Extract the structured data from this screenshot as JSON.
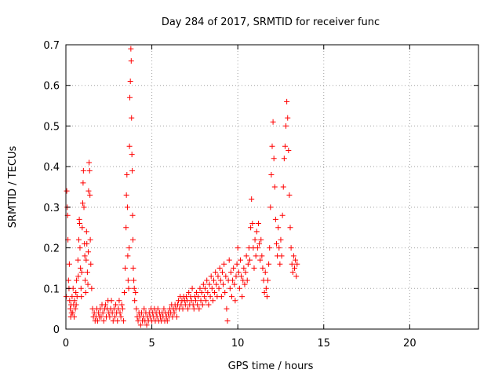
{
  "chart_data": {
    "type": "scatter",
    "title": "Day 284 of 2017, SRMTID for receiver func",
    "xlabel": "GPS time / hours",
    "ylabel": "SRMTID / TECUs",
    "xlim": [
      0,
      24
    ],
    "ylim": [
      0,
      0.7
    ],
    "xticks": [
      "0",
      "5",
      "10",
      "15",
      "20"
    ],
    "yticks": [
      "0",
      "0.1",
      "0.2",
      "0.3",
      "0.4",
      "0.5",
      "0.6",
      "0.7"
    ],
    "grid": true,
    "marker": "+",
    "color": "#ff0000",
    "series": [
      {
        "name": "SRMTID",
        "points": [
          [
            0.02,
            0.08
          ],
          [
            0.05,
            0.34
          ],
          [
            0.08,
            0.3
          ],
          [
            0.1,
            0.28
          ],
          [
            0.12,
            0.22
          ],
          [
            0.15,
            0.12
          ],
          [
            0.18,
            0.1
          ],
          [
            0.2,
            0.16
          ],
          [
            0.22,
            0.07
          ],
          [
            0.25,
            0.05
          ],
          [
            0.28,
            0.03
          ],
          [
            0.3,
            0.06
          ],
          [
            0.33,
            0.04
          ],
          [
            0.36,
            0.08
          ],
          [
            0.4,
            0.04
          ],
          [
            0.42,
            0.1
          ],
          [
            0.45,
            0.06
          ],
          [
            0.48,
            0.03
          ],
          [
            0.5,
            0.07
          ],
          [
            0.55,
            0.05
          ],
          [
            0.58,
            0.09
          ],
          [
            0.6,
            0.06
          ],
          [
            0.62,
            0.12
          ],
          [
            0.65,
            0.08
          ],
          [
            0.7,
            0.17
          ],
          [
            0.72,
            0.13
          ],
          [
            0.75,
            0.22
          ],
          [
            0.78,
            0.27
          ],
          [
            0.8,
            0.26
          ],
          [
            0.82,
            0.2
          ],
          [
            0.85,
            0.15
          ],
          [
            0.88,
            0.1
          ],
          [
            0.9,
            0.08
          ],
          [
            0.92,
            0.14
          ],
          [
            0.95,
            0.25
          ],
          [
            0.98,
            0.31
          ],
          [
            1.0,
            0.36
          ],
          [
            1.02,
            0.39
          ],
          [
            1.05,
            0.3
          ],
          [
            1.08,
            0.21
          ],
          [
            1.1,
            0.18
          ],
          [
            1.12,
            0.12
          ],
          [
            1.15,
            0.09
          ],
          [
            1.18,
            0.17
          ],
          [
            1.2,
            0.24
          ],
          [
            1.22,
            0.21
          ],
          [
            1.25,
            0.14
          ],
          [
            1.28,
            0.11
          ],
          [
            1.3,
            0.19
          ],
          [
            1.32,
            0.34
          ],
          [
            1.35,
            0.41
          ],
          [
            1.38,
            0.39
          ],
          [
            1.4,
            0.33
          ],
          [
            1.42,
            0.22
          ],
          [
            1.45,
            0.16
          ],
          [
            1.5,
            0.1
          ],
          [
            1.55,
            0.05
          ],
          [
            1.6,
            0.03
          ],
          [
            1.65,
            0.04
          ],
          [
            1.7,
            0.02
          ],
          [
            1.75,
            0.03
          ],
          [
            1.8,
            0.05
          ],
          [
            1.85,
            0.02
          ],
          [
            1.9,
            0.04
          ],
          [
            1.95,
            0.03
          ],
          [
            2.0,
            0.05
          ],
          [
            2.05,
            0.03
          ],
          [
            2.1,
            0.06
          ],
          [
            2.15,
            0.04
          ],
          [
            2.2,
            0.02
          ],
          [
            2.25,
            0.05
          ],
          [
            2.3,
            0.06
          ],
          [
            2.35,
            0.03
          ],
          [
            2.4,
            0.05
          ],
          [
            2.45,
            0.07
          ],
          [
            2.5,
            0.04
          ],
          [
            2.55,
            0.03
          ],
          [
            2.6,
            0.05
          ],
          [
            2.65,
            0.07
          ],
          [
            2.7,
            0.04
          ],
          [
            2.75,
            0.02
          ],
          [
            2.8,
            0.05
          ],
          [
            2.85,
            0.03
          ],
          [
            2.9,
            0.06
          ],
          [
            2.95,
            0.04
          ],
          [
            3.0,
            0.02
          ],
          [
            3.05,
            0.05
          ],
          [
            3.1,
            0.07
          ],
          [
            3.15,
            0.04
          ],
          [
            3.2,
            0.03
          ],
          [
            3.25,
            0.06
          ],
          [
            3.3,
            0.05
          ],
          [
            3.35,
            0.02
          ],
          [
            3.4,
            0.09
          ],
          [
            3.45,
            0.15
          ],
          [
            3.5,
            0.25
          ],
          [
            3.52,
            0.33
          ],
          [
            3.55,
            0.38
          ],
          [
            3.58,
            0.3
          ],
          [
            3.6,
            0.18
          ],
          [
            3.62,
            0.12
          ],
          [
            3.65,
            0.1
          ],
          [
            3.68,
            0.2
          ],
          [
            3.7,
            0.45
          ],
          [
            3.72,
            0.57
          ],
          [
            3.75,
            0.61
          ],
          [
            3.78,
            0.69
          ],
          [
            3.8,
            0.66
          ],
          [
            3.82,
            0.52
          ],
          [
            3.84,
            0.43
          ],
          [
            3.86,
            0.39
          ],
          [
            3.88,
            0.28
          ],
          [
            3.9,
            0.22
          ],
          [
            3.92,
            0.15
          ],
          [
            3.95,
            0.12
          ],
          [
            3.98,
            0.1
          ],
          [
            4.0,
            0.07
          ],
          [
            4.05,
            0.09
          ],
          [
            4.1,
            0.05
          ],
          [
            4.15,
            0.03
          ],
          [
            4.2,
            0.02
          ],
          [
            4.25,
            0.04
          ],
          [
            4.3,
            0.03
          ],
          [
            4.35,
            0.01
          ],
          [
            4.4,
            0.04
          ],
          [
            4.45,
            0.02
          ],
          [
            4.5,
            0.03
          ],
          [
            4.55,
            0.05
          ],
          [
            4.6,
            0.02
          ],
          [
            4.65,
            0.04
          ],
          [
            4.7,
            0.01
          ],
          [
            4.75,
            0.03
          ],
          [
            4.8,
            0.02
          ],
          [
            4.85,
            0.04
          ],
          [
            4.9,
            0.03
          ],
          [
            4.95,
            0.05
          ],
          [
            5.0,
            0.02
          ],
          [
            5.05,
            0.04
          ],
          [
            5.1,
            0.03
          ],
          [
            5.15,
            0.05
          ],
          [
            5.2,
            0.02
          ],
          [
            5.25,
            0.04
          ],
          [
            5.3,
            0.03
          ],
          [
            5.35,
            0.05
          ],
          [
            5.4,
            0.02
          ],
          [
            5.45,
            0.04
          ],
          [
            5.5,
            0.03
          ],
          [
            5.55,
            0.02
          ],
          [
            5.6,
            0.04
          ],
          [
            5.65,
            0.03
          ],
          [
            5.7,
            0.05
          ],
          [
            5.75,
            0.02
          ],
          [
            5.8,
            0.04
          ],
          [
            5.85,
            0.03
          ],
          [
            5.9,
            0.02
          ],
          [
            5.95,
            0.04
          ],
          [
            6.0,
            0.03
          ],
          [
            6.05,
            0.05
          ],
          [
            6.1,
            0.04
          ],
          [
            6.15,
            0.06
          ],
          [
            6.2,
            0.03
          ],
          [
            6.25,
            0.05
          ],
          [
            6.3,
            0.04
          ],
          [
            6.35,
            0.06
          ],
          [
            6.4,
            0.05
          ],
          [
            6.45,
            0.03
          ],
          [
            6.5,
            0.06
          ],
          [
            6.55,
            0.07
          ],
          [
            6.6,
            0.05
          ],
          [
            6.65,
            0.08
          ],
          [
            6.7,
            0.06
          ],
          [
            6.75,
            0.07
          ],
          [
            6.8,
            0.05
          ],
          [
            6.85,
            0.08
          ],
          [
            6.9,
            0.07
          ],
          [
            6.95,
            0.06
          ],
          [
            7.0,
            0.08
          ],
          [
            7.05,
            0.07
          ],
          [
            7.1,
            0.05
          ],
          [
            7.15,
            0.09
          ],
          [
            7.2,
            0.06
          ],
          [
            7.25,
            0.08
          ],
          [
            7.3,
            0.07
          ],
          [
            7.35,
            0.1
          ],
          [
            7.4,
            0.06
          ],
          [
            7.45,
            0.05
          ],
          [
            7.5,
            0.08
          ],
          [
            7.55,
            0.07
          ],
          [
            7.6,
            0.09
          ],
          [
            7.65,
            0.06
          ],
          [
            7.7,
            0.08
          ],
          [
            7.75,
            0.05
          ],
          [
            7.8,
            0.1
          ],
          [
            7.85,
            0.07
          ],
          [
            7.9,
            0.09
          ],
          [
            7.95,
            0.06
          ],
          [
            8.0,
            0.11
          ],
          [
            8.05,
            0.08
          ],
          [
            8.1,
            0.1
          ],
          [
            8.15,
            0.07
          ],
          [
            8.2,
            0.12
          ],
          [
            8.25,
            0.09
          ],
          [
            8.3,
            0.06
          ],
          [
            8.35,
            0.11
          ],
          [
            8.4,
            0.08
          ],
          [
            8.45,
            0.13
          ],
          [
            8.5,
            0.1
          ],
          [
            8.55,
            0.07
          ],
          [
            8.6,
            0.12
          ],
          [
            8.65,
            0.09
          ],
          [
            8.7,
            0.14
          ],
          [
            8.75,
            0.11
          ],
          [
            8.8,
            0.08
          ],
          [
            8.85,
            0.13
          ],
          [
            8.9,
            0.1
          ],
          [
            8.95,
            0.15
          ],
          [
            9.0,
            0.12
          ],
          [
            9.05,
            0.08
          ],
          [
            9.1,
            0.14
          ],
          [
            9.15,
            0.11
          ],
          [
            9.2,
            0.16
          ],
          [
            9.25,
            0.09
          ],
          [
            9.3,
            0.13
          ],
          [
            9.35,
            0.05
          ],
          [
            9.4,
            0.02
          ],
          [
            9.45,
            0.12
          ],
          [
            9.5,
            0.17
          ],
          [
            9.55,
            0.1
          ],
          [
            9.6,
            0.14
          ],
          [
            9.65,
            0.08
          ],
          [
            9.7,
            0.12
          ],
          [
            9.75,
            0.15
          ],
          [
            9.8,
            0.11
          ],
          [
            9.85,
            0.07
          ],
          [
            9.9,
            0.13
          ],
          [
            9.95,
            0.16
          ],
          [
            10.0,
            0.2
          ],
          [
            10.05,
            0.14
          ],
          [
            10.1,
            0.1
          ],
          [
            10.15,
            0.17
          ],
          [
            10.2,
            0.13
          ],
          [
            10.25,
            0.08
          ],
          [
            10.3,
            0.12
          ],
          [
            10.35,
            0.15
          ],
          [
            10.4,
            0.11
          ],
          [
            10.45,
            0.14
          ],
          [
            10.5,
            0.18
          ],
          [
            10.55,
            0.12
          ],
          [
            10.6,
            0.16
          ],
          [
            10.65,
            0.2
          ],
          [
            10.7,
            0.17
          ],
          [
            10.75,
            0.25
          ],
          [
            10.8,
            0.32
          ],
          [
            10.85,
            0.26
          ],
          [
            10.9,
            0.2
          ],
          [
            10.95,
            0.15
          ],
          [
            11.0,
            0.22
          ],
          [
            11.05,
            0.18
          ],
          [
            11.1,
            0.24
          ],
          [
            11.15,
            0.2
          ],
          [
            11.2,
            0.26
          ],
          [
            11.25,
            0.21
          ],
          [
            11.3,
            0.17
          ],
          [
            11.35,
            0.22
          ],
          [
            11.4,
            0.18
          ],
          [
            11.45,
            0.15
          ],
          [
            11.5,
            0.12
          ],
          [
            11.55,
            0.09
          ],
          [
            11.6,
            0.14
          ],
          [
            11.65,
            0.1
          ],
          [
            11.7,
            0.08
          ],
          [
            11.75,
            0.12
          ],
          [
            11.8,
            0.16
          ],
          [
            11.85,
            0.2
          ],
          [
            11.9,
            0.3
          ],
          [
            11.95,
            0.38
          ],
          [
            12.0,
            0.45
          ],
          [
            12.05,
            0.51
          ],
          [
            12.1,
            0.42
          ],
          [
            12.15,
            0.35
          ],
          [
            12.2,
            0.27
          ],
          [
            12.25,
            0.21
          ],
          [
            12.3,
            0.18
          ],
          [
            12.35,
            0.25
          ],
          [
            12.4,
            0.2
          ],
          [
            12.45,
            0.16
          ],
          [
            12.5,
            0.22
          ],
          [
            12.55,
            0.18
          ],
          [
            12.6,
            0.28
          ],
          [
            12.65,
            0.35
          ],
          [
            12.7,
            0.42
          ],
          [
            12.75,
            0.45
          ],
          [
            12.8,
            0.5
          ],
          [
            12.85,
            0.56
          ],
          [
            12.9,
            0.52
          ],
          [
            12.95,
            0.44
          ],
          [
            13.0,
            0.33
          ],
          [
            13.05,
            0.25
          ],
          [
            13.1,
            0.2
          ],
          [
            13.15,
            0.16
          ],
          [
            13.2,
            0.14
          ],
          [
            13.25,
            0.18
          ],
          [
            13.3,
            0.15
          ],
          [
            13.35,
            0.17
          ],
          [
            13.4,
            0.13
          ],
          [
            13.45,
            0.16
          ]
        ]
      }
    ]
  }
}
